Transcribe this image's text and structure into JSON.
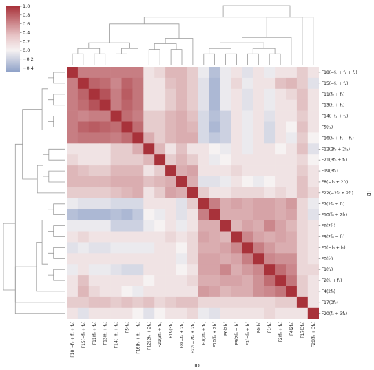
{
  "chart_data": {
    "type": "heatmap",
    "title": "",
    "xlabel": "ID",
    "ylabel": "ID",
    "labels": [
      "F18(−f₀ + f₁ + f₂)",
      "F15(−f₀ + f₂)",
      "F11(f₀ + f₂)",
      "F13(f₁ + f₂)",
      "F14(−f₁ + f₂)",
      "F5(f₂)",
      "F16(f₀ + f₁ − f₂)",
      "F12(2f₀ + 2f₁)",
      "F21(3f₀ + f₁)",
      "F19(3f₁)",
      "F8(−f₀ + 2f₁)",
      "F22(−2f₀ + 2f₁)",
      "F7(2f₀ + f₁)",
      "F10(f₀ + 2f₁)",
      "F6(2f₁)",
      "F9(2f₀ − f₁)",
      "F3(−f₀ + f₁)",
      "F0(f₀)",
      "F1(f₁)",
      "F2(f₀ + f₁)",
      "F4(2f₀)",
      "F17(3f₀)",
      "F20(f₀ + 3f₁)"
    ],
    "x_tick_labels": [
      "F18(−f₀ + f₁ + f₂)",
      "F15(−f₀ + f₂)",
      "F11(f₀ + f₂)",
      "F13(f₁ + f₂)",
      "F14(−f₁ + f₂)",
      "F5(f₂)",
      "F16(f₀ + f₁ − f₂)",
      "F12(2f₀ + 2f₁)",
      "F21(3f₀ + f₁)",
      "F19(3f₁)",
      "F8(−f₀ + 2f₁)",
      "F22(−2f₀ + 2f₁)",
      "F7(2f₀ + f₁)",
      "F10(f₀ + 2f₁)",
      "F6(2f₁)",
      "F9(2f₀ − f₁)",
      "F3(−f₀ + f₁)",
      "F0(f₀)",
      "F1(f₁)",
      "F2(f₀ + f₁)",
      "F4(2f₀)",
      "F17(3f₀)",
      "F20(f₀ + 3f₁)"
    ],
    "colorbar": {
      "min": -0.5,
      "max": 1.0,
      "ticks": [
        "1.0",
        "0.8",
        "0.6",
        "0.4",
        "0.2",
        "0.0",
        "−0.2",
        "−0.4"
      ],
      "tick_values": [
        1.0,
        0.8,
        0.6,
        0.4,
        0.2,
        0.0,
        -0.2,
        -0.4
      ]
    },
    "colors": {
      "positive": "#a8323a",
      "neutral": "#f6f2f2",
      "negative": "#8c9fc7"
    },
    "matrix": [
      [
        1.0,
        0.55,
        0.55,
        0.55,
        0.55,
        0.55,
        0.55,
        0.05,
        0.1,
        0.25,
        0.25,
        0.15,
        -0.05,
        -0.3,
        -0.05,
        0.05,
        -0.1,
        0.05,
        -0.05,
        0.05,
        0.05,
        0.15,
        0.05
      ],
      [
        0.55,
        1.0,
        0.7,
        0.65,
        0.5,
        0.7,
        0.6,
        0.05,
        0.05,
        0.2,
        0.25,
        0.15,
        -0.1,
        -0.35,
        -0.05,
        0.1,
        -0.05,
        0.05,
        0.05,
        0.2,
        0.25,
        0.15,
        -0.1
      ],
      [
        0.55,
        0.7,
        1.0,
        0.8,
        0.55,
        0.75,
        0.6,
        0.05,
        0.05,
        0.15,
        0.25,
        0.15,
        -0.1,
        -0.35,
        -0.05,
        0.05,
        -0.1,
        0.05,
        -0.05,
        0.05,
        0.1,
        0.2,
        0.05
      ],
      [
        0.55,
        0.65,
        0.8,
        1.0,
        0.55,
        0.7,
        0.6,
        0.05,
        0.05,
        0.15,
        0.25,
        0.15,
        -0.1,
        -0.35,
        -0.05,
        0.05,
        -0.1,
        0.05,
        -0.05,
        0.05,
        0.05,
        0.2,
        0.05
      ],
      [
        0.55,
        0.5,
        0.55,
        0.55,
        1.0,
        0.65,
        0.55,
        0.15,
        0.15,
        0.25,
        0.3,
        0.2,
        -0.15,
        -0.3,
        -0.2,
        0.05,
        -0.05,
        0.05,
        -0.1,
        0.05,
        0.05,
        0.15,
        0.05
      ],
      [
        0.55,
        0.7,
        0.75,
        0.7,
        0.65,
        1.0,
        0.65,
        0.15,
        0.15,
        0.25,
        0.3,
        0.25,
        -0.15,
        -0.35,
        -0.2,
        0.05,
        -0.05,
        0.05,
        -0.15,
        0.05,
        0.0,
        0.2,
        0.05
      ],
      [
        0.55,
        0.6,
        0.6,
        0.6,
        0.55,
        0.65,
        1.0,
        0.3,
        0.15,
        0.25,
        0.3,
        0.3,
        -0.15,
        -0.25,
        -0.2,
        0.05,
        -0.05,
        0.05,
        -0.15,
        0.05,
        -0.05,
        0.15,
        0.0
      ],
      [
        0.05,
        0.05,
        0.05,
        0.05,
        0.15,
        0.15,
        0.3,
        1.0,
        0.25,
        0.05,
        0.2,
        0.05,
        0.05,
        0.0,
        -0.05,
        0.05,
        -0.05,
        0.05,
        0.05,
        0.0,
        0.05,
        0.2,
        -0.1
      ],
      [
        0.1,
        0.05,
        0.05,
        0.05,
        0.15,
        0.15,
        0.15,
        0.25,
        1.0,
        0.15,
        0.25,
        0.15,
        0.05,
        -0.05,
        0.0,
        0.05,
        0.05,
        0.05,
        0.05,
        0.05,
        0.05,
        0.1,
        0.0
      ],
      [
        0.25,
        0.2,
        0.15,
        0.15,
        0.25,
        0.25,
        0.25,
        0.05,
        0.15,
        1.0,
        0.3,
        0.35,
        0.05,
        0.05,
        0.05,
        0.1,
        0.05,
        0.05,
        0.05,
        0.05,
        0.05,
        0.15,
        0.05
      ],
      [
        0.25,
        0.25,
        0.25,
        0.25,
        0.3,
        0.3,
        0.3,
        0.2,
        0.25,
        0.3,
        1.0,
        0.3,
        -0.1,
        -0.1,
        -0.05,
        0.05,
        0.0,
        -0.05,
        0.0,
        0.05,
        0.05,
        0.2,
        0.05
      ],
      [
        0.15,
        0.15,
        0.15,
        0.15,
        0.2,
        0.25,
        0.3,
        0.05,
        0.15,
        0.35,
        0.3,
        1.0,
        0.15,
        0.05,
        0.05,
        0.1,
        0.1,
        0.1,
        0.05,
        0.1,
        0.05,
        0.2,
        0.1
      ],
      [
        -0.05,
        -0.1,
        -0.1,
        -0.1,
        -0.15,
        -0.15,
        -0.15,
        0.05,
        0.05,
        0.05,
        -0.1,
        0.15,
        1.0,
        0.55,
        0.3,
        0.35,
        0.3,
        0.35,
        0.35,
        0.3,
        0.4,
        0.1,
        -0.05
      ],
      [
        -0.3,
        -0.35,
        -0.35,
        -0.35,
        -0.3,
        -0.35,
        -0.25,
        0.0,
        -0.05,
        0.05,
        -0.1,
        0.05,
        0.55,
        1.0,
        0.3,
        0.3,
        0.3,
        0.35,
        0.35,
        0.3,
        0.35,
        0.1,
        -0.1
      ],
      [
        -0.05,
        -0.05,
        -0.05,
        -0.05,
        -0.2,
        -0.2,
        -0.2,
        -0.05,
        0.0,
        0.05,
        -0.05,
        0.05,
        0.3,
        0.3,
        1.0,
        0.25,
        0.35,
        0.3,
        0.5,
        0.35,
        0.25,
        0.1,
        0.05
      ],
      [
        0.05,
        0.1,
        0.05,
        0.05,
        0.05,
        0.05,
        0.05,
        0.05,
        0.05,
        0.1,
        0.05,
        0.1,
        0.35,
        0.3,
        0.25,
        1.0,
        0.5,
        0.35,
        0.3,
        0.35,
        0.3,
        0.1,
        0.05
      ],
      [
        -0.1,
        -0.05,
        -0.1,
        -0.1,
        -0.05,
        -0.05,
        -0.05,
        -0.05,
        0.05,
        0.05,
        0.0,
        0.1,
        0.3,
        0.3,
        0.35,
        0.5,
        1.0,
        0.55,
        0.4,
        0.3,
        0.3,
        0.1,
        0.05
      ],
      [
        0.05,
        0.05,
        0.05,
        0.05,
        0.05,
        0.05,
        0.05,
        0.05,
        0.05,
        0.05,
        -0.05,
        0.1,
        0.35,
        0.35,
        0.3,
        0.35,
        0.55,
        1.0,
        0.5,
        0.45,
        0.45,
        0.1,
        0.05
      ],
      [
        -0.05,
        0.05,
        -0.05,
        -0.05,
        -0.1,
        -0.15,
        -0.15,
        0.05,
        0.05,
        0.05,
        0.0,
        0.05,
        0.35,
        0.35,
        0.5,
        0.3,
        0.4,
        0.5,
        1.0,
        0.65,
        0.5,
        0.1,
        0.1
      ],
      [
        0.05,
        0.2,
        0.05,
        0.05,
        0.05,
        0.05,
        0.05,
        0.0,
        0.05,
        0.05,
        0.05,
        0.1,
        0.3,
        0.3,
        0.35,
        0.35,
        0.3,
        0.45,
        0.65,
        1.0,
        0.6,
        0.15,
        0.05
      ],
      [
        0.05,
        0.25,
        0.1,
        0.05,
        0.05,
        0.0,
        -0.05,
        0.05,
        0.05,
        0.05,
        0.05,
        0.05,
        0.4,
        0.35,
        0.25,
        0.3,
        0.3,
        0.45,
        0.5,
        0.6,
        1.0,
        0.15,
        0.05
      ],
      [
        0.15,
        0.15,
        0.2,
        0.2,
        0.15,
        0.2,
        0.15,
        0.2,
        0.1,
        0.15,
        0.2,
        0.2,
        0.1,
        0.1,
        0.1,
        0.1,
        0.1,
        0.1,
        0.1,
        0.15,
        0.15,
        1.0,
        0.05
      ],
      [
        0.05,
        -0.1,
        0.05,
        0.05,
        0.05,
        0.05,
        0.0,
        -0.1,
        0.0,
        0.05,
        0.05,
        0.1,
        -0.05,
        -0.1,
        0.05,
        0.05,
        0.05,
        0.05,
        0.1,
        0.05,
        0.05,
        0.05,
        1.0
      ]
    ],
    "dendrogram": {
      "groups": [
        [
          0,
          1,
          2,
          3,
          4,
          5,
          6
        ],
        [
          7,
          8,
          9,
          10,
          11
        ],
        [
          12,
          13,
          14,
          15,
          16,
          17,
          18,
          19,
          20
        ],
        [
          21
        ],
        [
          22
        ]
      ]
    }
  }
}
